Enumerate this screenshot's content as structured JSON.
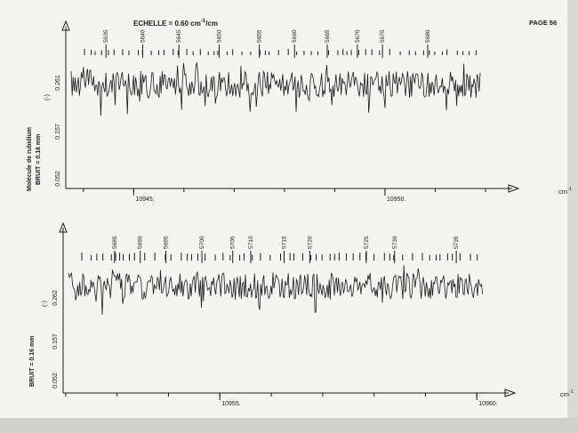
{
  "page": {
    "scale_label": "ECHELLE = 0.60 cm",
    "scale_exp": "-1",
    "scale_unit": "/cm",
    "page_label": "PAGE 56",
    "side_label": "Molécule de rubidium"
  },
  "chart_data": [
    {
      "type": "line",
      "title": "",
      "xlabel": "cm",
      "xlabel_exp": "-1",
      "noise_label": "BRUIT = 0.16 mm",
      "ylabel_mark": "(-)",
      "yticks": [
        "0.261",
        "0.157",
        "0.052"
      ],
      "xticks": [
        "10945.",
        "10950."
      ],
      "xlim": [
        10943.65,
        10952.0
      ],
      "ylim": [
        0.0,
        0.33
      ],
      "line_labels": [
        {
          "x": 10944.45,
          "label": "5635"
        },
        {
          "x": 10945.18,
          "label": "5640"
        },
        {
          "x": 10945.9,
          "label": "5645"
        },
        {
          "x": 10946.7,
          "label": "5650"
        },
        {
          "x": 10947.5,
          "label": "5655"
        },
        {
          "x": 10948.2,
          "label": "5660"
        },
        {
          "x": 10948.85,
          "label": "5665"
        },
        {
          "x": 10949.45,
          "label": "5670"
        },
        {
          "x": 10949.95,
          "label": "5675"
        },
        {
          "x": 10950.85,
          "label": "5680"
        }
      ]
    },
    {
      "type": "line",
      "title": "",
      "xlabel": "cm",
      "xlabel_exp": "-1",
      "noise_label": "BRUIT = 0.16 mm",
      "ylabel_mark": "(-)",
      "yticks": [
        "0.262",
        "0.157",
        "0.052"
      ],
      "xticks": [
        "10955.",
        "10960."
      ],
      "xlim": [
        10951.95,
        10960.1
      ],
      "ylim": [
        0.0,
        0.33
      ],
      "line_labels": [
        {
          "x": 10952.95,
          "label": "5685"
        },
        {
          "x": 10953.45,
          "label": "5690"
        },
        {
          "x": 10953.95,
          "label": "5695"
        },
        {
          "x": 10954.65,
          "label": "5700"
        },
        {
          "x": 10955.25,
          "label": "5705"
        },
        {
          "x": 10955.6,
          "label": "5710"
        },
        {
          "x": 10956.25,
          "label": "5715"
        },
        {
          "x": 10956.75,
          "label": "5720"
        },
        {
          "x": 10957.85,
          "label": "5725"
        },
        {
          "x": 10958.4,
          "label": "5730"
        },
        {
          "x": 10959.6,
          "label": "5735"
        }
      ]
    }
  ]
}
